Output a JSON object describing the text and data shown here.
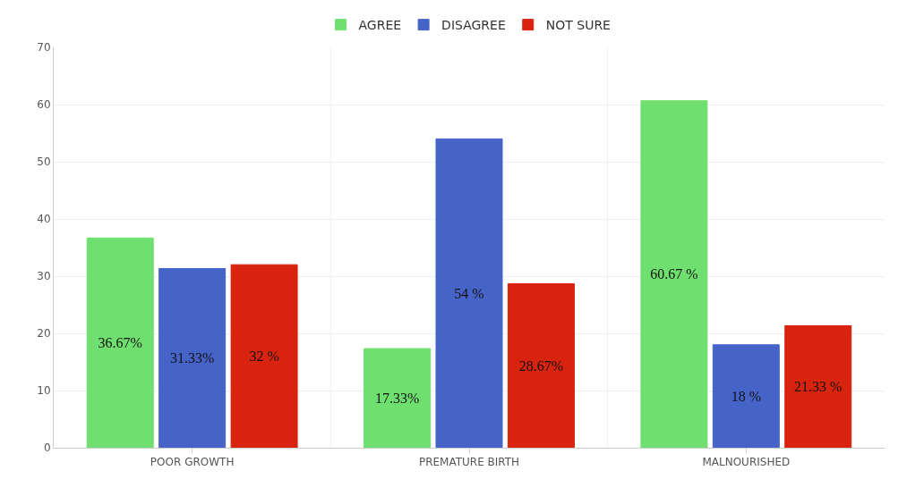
{
  "chart_data": {
    "type": "bar",
    "categories": [
      "POOR GROWTH",
      "PREMATURE BIRTH",
      "MALNOURISHED"
    ],
    "series": [
      {
        "name": "AGREE",
        "color": "#6fe06f",
        "values": [
          36.67,
          17.33,
          60.67
        ],
        "value_labels": [
          "36.67%",
          "17.33%",
          "60.67 %"
        ]
      },
      {
        "name": "DISAGREE",
        "color": "#4664c8",
        "values": [
          31.33,
          54,
          18
        ],
        "value_labels": [
          "31.33%",
          "54 %",
          "18 %"
        ]
      },
      {
        "name": "NOT SURE",
        "color": "#d8230f",
        "values": [
          32,
          28.67,
          21.33
        ],
        "value_labels": [
          "32 %",
          "28.67%",
          "21.33 %"
        ]
      }
    ],
    "ylim": [
      0,
      70
    ],
    "yticks": [
      0,
      10,
      20,
      30,
      40,
      50,
      60,
      70
    ],
    "grid": true,
    "legend": "top"
  }
}
